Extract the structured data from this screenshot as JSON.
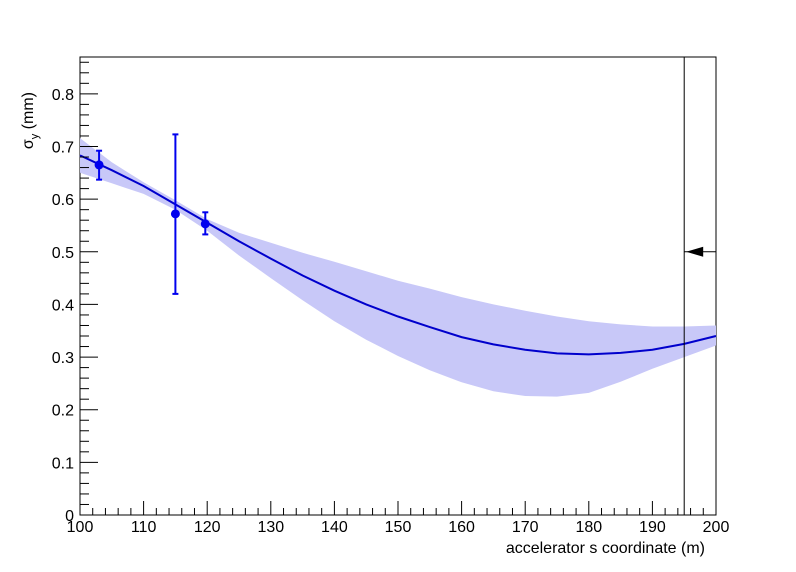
{
  "chart_data": {
    "type": "line",
    "xlabel": "accelerator s coordinate (m)",
    "ylabel_symbol": "σ",
    "ylabel_subscript": "y",
    "ylabel_unit": " (mm)",
    "xlim": [
      100,
      200
    ],
    "ylim": [
      0,
      0.87
    ],
    "x_ticks": [
      100,
      110,
      120,
      130,
      140,
      150,
      160,
      170,
      180,
      190,
      200
    ],
    "x_tick_labels": [
      "100",
      "110",
      "120",
      "130",
      "140",
      "150",
      "160",
      "170",
      "180",
      "190",
      "200"
    ],
    "y_ticks": [
      0,
      0.1,
      0.2,
      0.3,
      0.4,
      0.5,
      0.6,
      0.7,
      0.8
    ],
    "y_tick_labels": [
      "0",
      "0.1",
      "0.2",
      "0.3",
      "0.4",
      "0.5",
      "0.6",
      "0.7",
      "0.8"
    ],
    "grid": false,
    "colors": {
      "line": "#0000cc",
      "band": "#c8c8f8",
      "points": "#0000ee",
      "marker": "#000000"
    },
    "fit_curve": {
      "x": [
        100,
        105,
        110,
        115,
        120,
        125,
        130,
        135,
        140,
        145,
        150,
        155,
        160,
        165,
        170,
        175,
        180,
        185,
        190,
        195,
        200
      ],
      "y": [
        0.683,
        0.655,
        0.625,
        0.59,
        0.555,
        0.52,
        0.487,
        0.455,
        0.426,
        0.4,
        0.377,
        0.357,
        0.338,
        0.324,
        0.314,
        0.307,
        0.305,
        0.308,
        0.314,
        0.325,
        0.34
      ]
    },
    "uncertainty_band": {
      "x": [
        100,
        105,
        110,
        115,
        120,
        125,
        130,
        135,
        140,
        145,
        150,
        155,
        160,
        165,
        170,
        175,
        180,
        185,
        190,
        195,
        200
      ],
      "upper": [
        0.716,
        0.67,
        0.632,
        0.598,
        0.562,
        0.536,
        0.517,
        0.498,
        0.481,
        0.463,
        0.445,
        0.43,
        0.414,
        0.4,
        0.388,
        0.377,
        0.368,
        0.362,
        0.358,
        0.358,
        0.36
      ],
      "lower": [
        0.65,
        0.63,
        0.61,
        0.58,
        0.54,
        0.493,
        0.45,
        0.408,
        0.368,
        0.333,
        0.302,
        0.275,
        0.252,
        0.235,
        0.226,
        0.225,
        0.232,
        0.253,
        0.278,
        0.3,
        0.322
      ]
    },
    "data_points": [
      {
        "x": 103,
        "y": 0.665,
        "err_low": 0.637,
        "err_high": 0.692
      },
      {
        "x": 115,
        "y": 0.572,
        "err_low": 0.42,
        "err_high": 0.723
      },
      {
        "x": 119.7,
        "y": 0.553,
        "err_low": 0.533,
        "err_high": 0.575
      }
    ],
    "vertical_line_x": 195,
    "arrow_marker": {
      "x_from": 200,
      "x_to": 195,
      "y": 0.5
    }
  }
}
